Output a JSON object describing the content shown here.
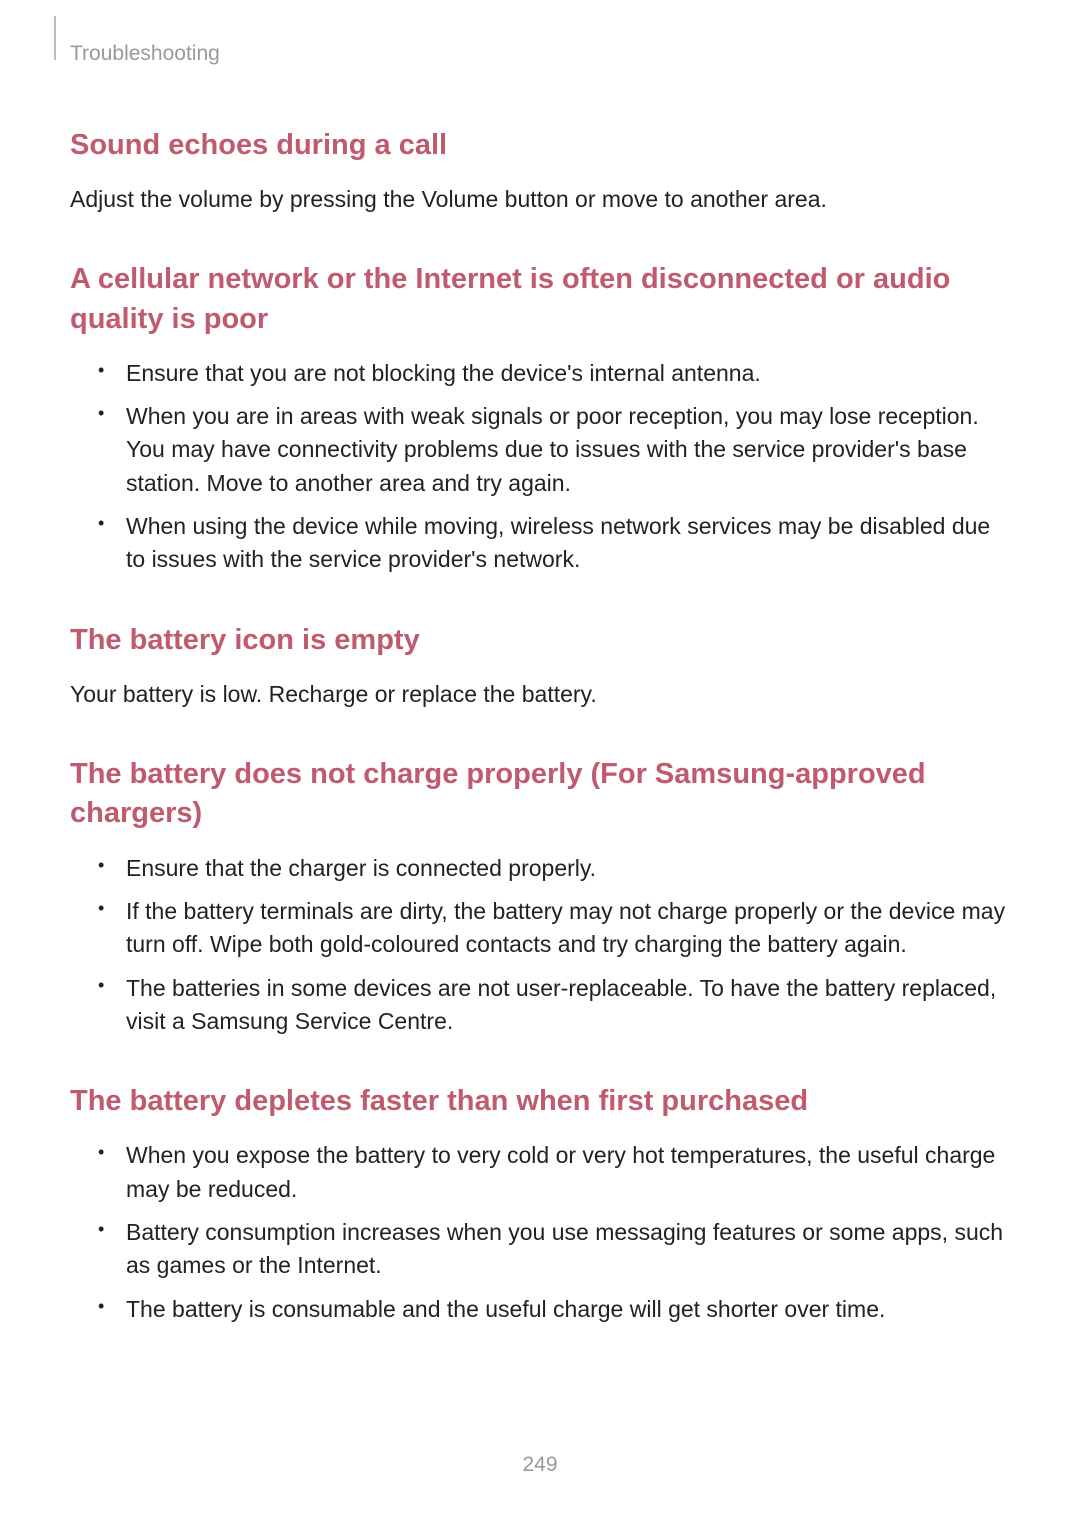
{
  "breadcrumb": "Troubleshooting",
  "page_number": "249",
  "colors": {
    "heading": "#c05a6e",
    "body": "#222222",
    "muted": "#999999",
    "background": "#ffffff"
  },
  "typography": {
    "heading_fontsize": 29,
    "body_fontsize": 23,
    "breadcrumb_fontsize": 21,
    "heading_weight": 700
  },
  "sections": [
    {
      "heading": "Sound echoes during a call",
      "body": "Adjust the volume by pressing the Volume button or move to another area.",
      "bullets": []
    },
    {
      "heading": "A cellular network or the Internet is often disconnected or audio quality is poor",
      "body": "",
      "bullets": [
        "Ensure that you are not blocking the device's internal antenna.",
        "When you are in areas with weak signals or poor reception, you may lose reception. You may have connectivity problems due to issues with the service provider's base station. Move to another area and try again.",
        "When using the device while moving, wireless network services may be disabled due to issues with the service provider's network."
      ]
    },
    {
      "heading": "The battery icon is empty",
      "body": "Your battery is low. Recharge or replace the battery.",
      "bullets": []
    },
    {
      "heading": "The battery does not charge properly (For Samsung-approved chargers)",
      "body": "",
      "bullets": [
        "Ensure that the charger is connected properly.",
        "If the battery terminals are dirty, the battery may not charge properly or the device may turn off. Wipe both gold-coloured contacts and try charging the battery again.",
        "The batteries in some devices are not user-replaceable. To have the battery replaced, visit a Samsung Service Centre."
      ]
    },
    {
      "heading": "The battery depletes faster than when first purchased",
      "body": "",
      "bullets": [
        "When you expose the battery to very cold or very hot temperatures, the useful charge may be reduced.",
        "Battery consumption increases when you use messaging features or some apps, such as games or the Internet.",
        "The battery is consumable and the useful charge will get shorter over time."
      ]
    }
  ]
}
